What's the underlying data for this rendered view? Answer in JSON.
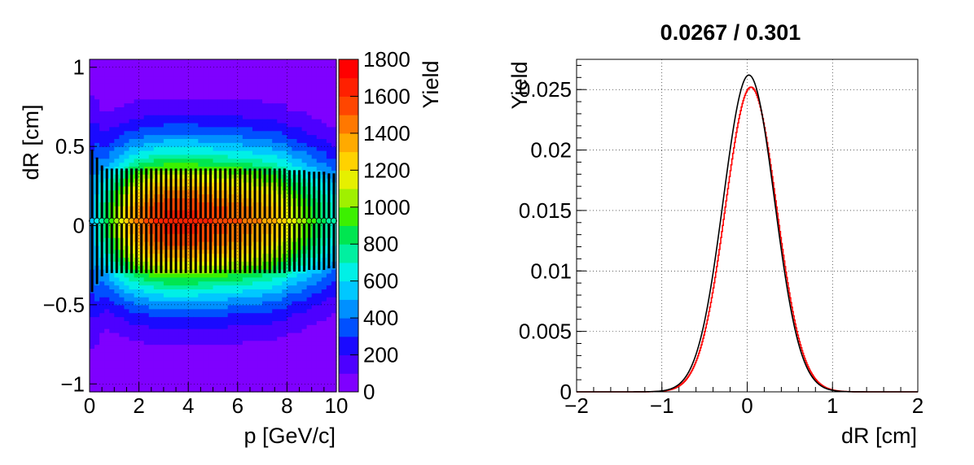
{
  "chart_data": [
    {
      "type": "heatmap",
      "xlabel": "p [GeV/c]",
      "ylabel": "dR [cm]",
      "zlabel": "Yield",
      "xlim": [
        0,
        10
      ],
      "ylim": [
        -1.05,
        1.05
      ],
      "zlim": [
        0,
        1800
      ],
      "x_ticks": [
        "0",
        "2",
        "4",
        "6",
        "8",
        "10"
      ],
      "y_ticks": [
        "1",
        "0.5",
        "0",
        "−0.5",
        "−1"
      ],
      "z_ticks": [
        "0",
        "200",
        "400",
        "600",
        "800",
        "1000",
        "1200",
        "1400",
        "1600",
        "1800"
      ],
      "grid": true,
      "overlay": {
        "type": "errorbar",
        "x": [
          0.1,
          0.3,
          0.5,
          0.7,
          0.9,
          1.1,
          1.3,
          1.5,
          1.7,
          1.9,
          2.1,
          2.3,
          2.5,
          2.7,
          2.9,
          3.1,
          3.3,
          3.5,
          3.7,
          3.9,
          4.1,
          4.3,
          4.5,
          4.7,
          4.9,
          5.1,
          5.3,
          5.5,
          5.7,
          5.9,
          6.1,
          6.3,
          6.5,
          6.7,
          6.9,
          7.1,
          7.3,
          7.5,
          7.7,
          7.9,
          8.1,
          8.3,
          8.5,
          8.7,
          8.9,
          9.1,
          9.3,
          9.5,
          9.7,
          9.9
        ],
        "mean": [
          0.03,
          0.03,
          0.03,
          0.03,
          0.03,
          0.03,
          0.03,
          0.03,
          0.03,
          0.03,
          0.03,
          0.03,
          0.03,
          0.03,
          0.03,
          0.03,
          0.03,
          0.03,
          0.03,
          0.03,
          0.03,
          0.03,
          0.03,
          0.03,
          0.03,
          0.03,
          0.03,
          0.03,
          0.03,
          0.03,
          0.03,
          0.03,
          0.03,
          0.03,
          0.03,
          0.03,
          0.03,
          0.03,
          0.03,
          0.03,
          0.03,
          0.03,
          0.03,
          0.03,
          0.03,
          0.03,
          0.03,
          0.03,
          0.03,
          0.03
        ],
        "sigma": [
          0.45,
          0.4,
          0.35,
          0.33,
          0.33,
          0.33,
          0.33,
          0.33,
          0.33,
          0.33,
          0.33,
          0.33,
          0.33,
          0.33,
          0.33,
          0.33,
          0.33,
          0.33,
          0.33,
          0.33,
          0.33,
          0.33,
          0.33,
          0.33,
          0.33,
          0.33,
          0.33,
          0.33,
          0.33,
          0.33,
          0.33,
          0.33,
          0.33,
          0.33,
          0.33,
          0.33,
          0.33,
          0.33,
          0.33,
          0.33,
          0.32,
          0.32,
          0.32,
          0.32,
          0.31,
          0.31,
          0.31,
          0.31,
          0.3,
          0.3
        ],
        "yield": [
          500,
          650,
          750,
          850,
          950,
          1050,
          1150,
          1250,
          1350,
          1400,
          1450,
          1500,
          1550,
          1600,
          1600,
          1650,
          1650,
          1650,
          1650,
          1650,
          1650,
          1650,
          1600,
          1600,
          1600,
          1550,
          1550,
          1550,
          1500,
          1500,
          1500,
          1450,
          1450,
          1400,
          1400,
          1350,
          1350,
          1300,
          1250,
          1200,
          1150,
          1100,
          1050,
          1000,
          950,
          900,
          850,
          800,
          750,
          700
        ]
      }
    },
    {
      "type": "line",
      "title": "0.0267 / 0.301",
      "xlabel": "dR [cm]",
      "ylabel": "Yield",
      "xlim": [
        -2,
        2
      ],
      "ylim": [
        0,
        0.0275
      ],
      "x_ticks": [
        "−2",
        "−1",
        "0",
        "1",
        "2"
      ],
      "y_ticks": [
        "0",
        "0.005",
        "0.01",
        "0.015",
        "0.02",
        "0.025"
      ],
      "grid": true,
      "series": [
        {
          "color": "#000000",
          "mean": 0.02,
          "sigma": 0.3,
          "peak": 0.0262
        },
        {
          "color": "#ff0000",
          "mean": 0.04,
          "sigma": 0.3,
          "peak": 0.0252
        }
      ]
    }
  ]
}
